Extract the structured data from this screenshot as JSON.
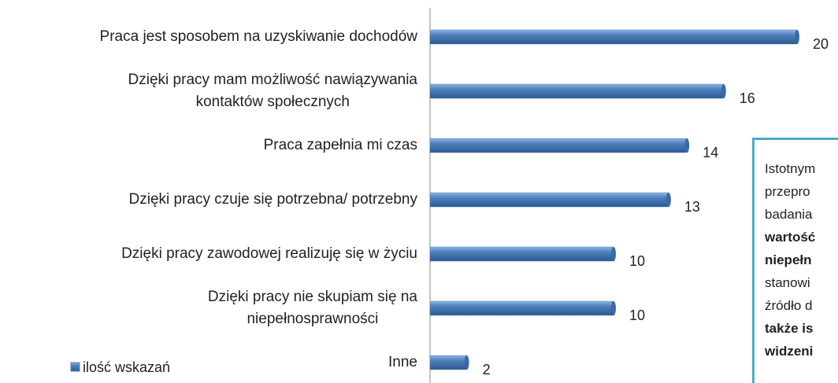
{
  "chart_data": {
    "type": "bar",
    "orientation": "horizontal",
    "categories": [
      "Praca jest sposobem na uzyskiwanie dochodów",
      "Dzięki pracy mam możliwość nawiązywania\nkontaktów społecznych",
      "Praca zapełnia mi czas",
      "Dzięki pracy czuje się potrzebna/ potrzebny",
      "Dzięki pracy zawodowej realizuję się w życiu",
      "Dzięki pracy nie skupiam się na\nniepełnosprawności",
      "Inne"
    ],
    "series": [
      {
        "name": "ilość wskazań",
        "color": "#4f81bd",
        "values": [
          20,
          16,
          14,
          13,
          10,
          10,
          2
        ]
      }
    ],
    "xlim": [
      0,
      20
    ],
    "legend": "bottom-left",
    "annotation": [
      {
        "text": "Istotnym",
        "bold": false
      },
      {
        "text": "przepro",
        "bold": false
      },
      {
        "text": "badania",
        "bold": false
      },
      {
        "text": "wartość",
        "bold": true
      },
      {
        "text": "niepełn",
        "bold": true
      },
      {
        "text": "stanowi",
        "bold": false
      },
      {
        "text": "źródło d",
        "bold": false
      },
      {
        "text": "także is",
        "bold": true
      },
      {
        "text": "widzeni",
        "bold": true
      }
    ]
  }
}
